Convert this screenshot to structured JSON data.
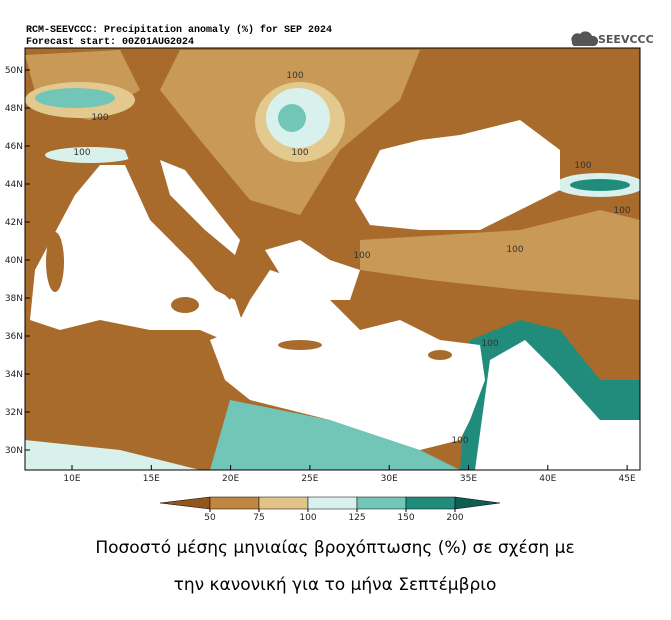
{
  "header": {
    "title": "RCM-SEEVCCC: Precipitation anomaly (%) for SEP 2024",
    "subtitle": "Forecast start: 00Z01AUG2024",
    "logo": "SEEVCCC"
  },
  "map": {
    "lat_ticks": [
      {
        "value": 50,
        "label": "50N"
      },
      {
        "value": 48,
        "label": "48N"
      },
      {
        "value": 46,
        "label": "46N"
      },
      {
        "value": 44,
        "label": "44N"
      },
      {
        "value": 42,
        "label": "42N"
      },
      {
        "value": 40,
        "label": "40N"
      },
      {
        "value": 38,
        "label": "38N"
      },
      {
        "value": 36,
        "label": "36N"
      },
      {
        "value": 34,
        "label": "34N"
      },
      {
        "value": 32,
        "label": "32N"
      },
      {
        "value": 30,
        "label": "30N"
      }
    ],
    "lon_ticks": [
      {
        "value": 10,
        "label": "10E"
      },
      {
        "value": 15,
        "label": "15E"
      },
      {
        "value": 20,
        "label": "20E"
      },
      {
        "value": 25,
        "label": "25E"
      },
      {
        "value": 30,
        "label": "30E"
      },
      {
        "value": 35,
        "label": "35E"
      },
      {
        "value": 40,
        "label": "40E"
      },
      {
        "value": 45,
        "label": "45E"
      }
    ],
    "contour_labels": [
      "100",
      "100",
      "100",
      "100",
      "100",
      "100",
      "100",
      "100",
      "100",
      "100"
    ]
  },
  "colorbar": {
    "ticks": [
      50,
      75,
      100,
      125,
      150,
      200
    ],
    "colors": [
      "#94561c",
      "#bf873f",
      "#e3c488",
      "#d8f1ec",
      "#72c6b8",
      "#218c7c",
      "#0d5f53"
    ]
  },
  "caption": [
    "Ποσοστό μέσης μηνιαίας βροχόπτωσης (%) σε σχέση με",
    "την κανονική για το μήνα Σεπτέμβριο"
  ]
}
